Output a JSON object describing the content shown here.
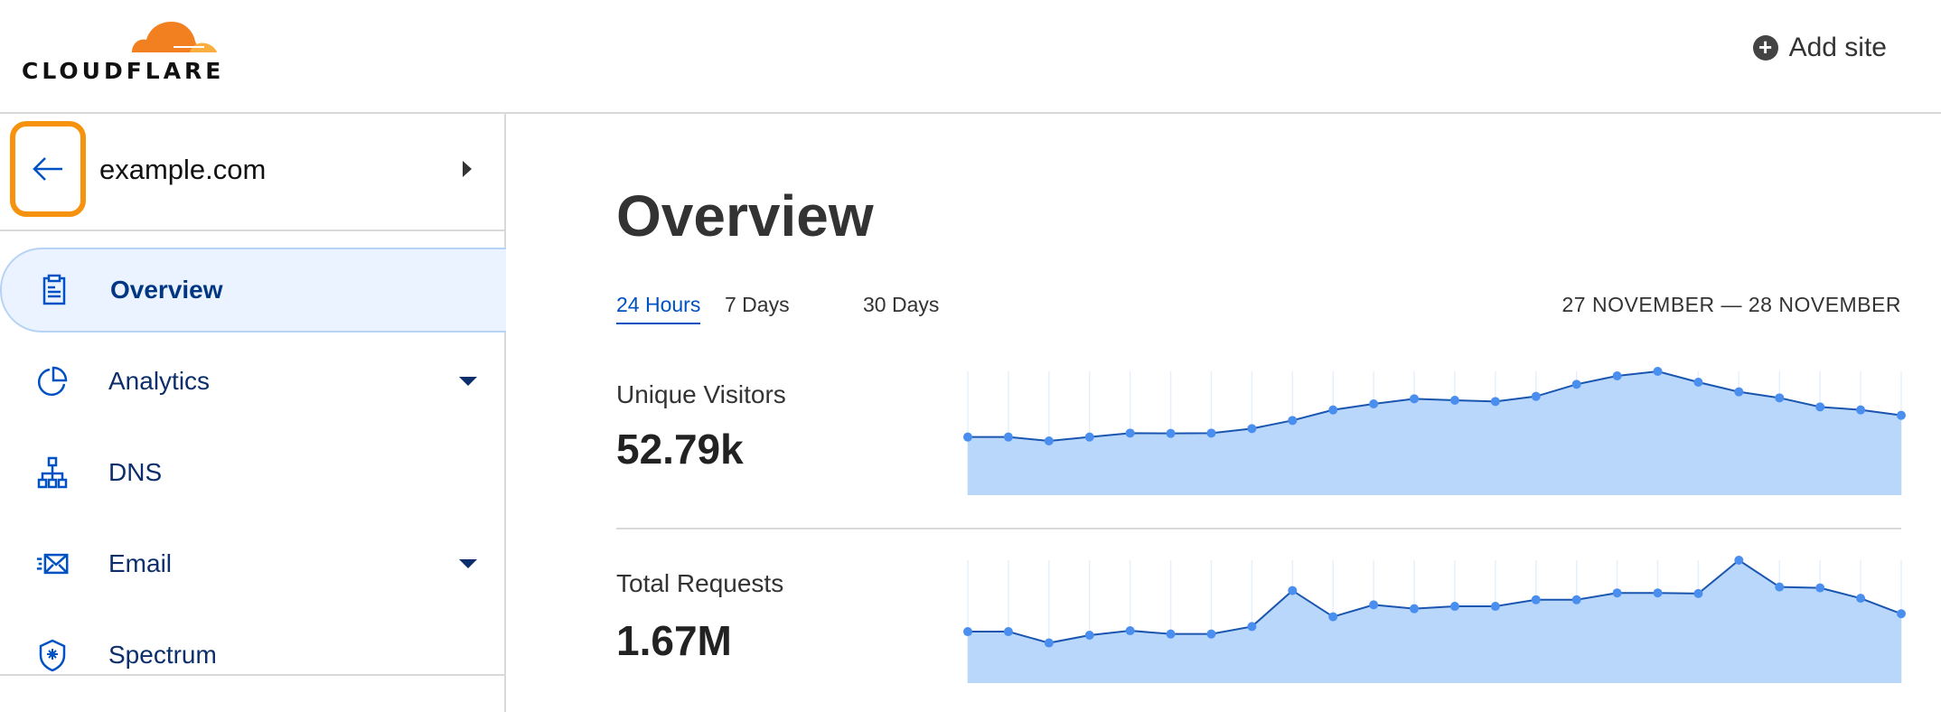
{
  "header": {
    "logo_text": "CLOUDFLARE",
    "add_site_label": "Add site",
    "add_site_icon": "plus-circle-icon"
  },
  "sidebar": {
    "domain": "example.com",
    "back_icon": "arrow-left-icon",
    "items": [
      {
        "label": "Overview",
        "icon": "clipboard-icon",
        "active": true,
        "dropdown": false
      },
      {
        "label": "Analytics",
        "icon": "pie-chart-icon",
        "active": false,
        "dropdown": true
      },
      {
        "label": "DNS",
        "icon": "network-icon",
        "active": false,
        "dropdown": false
      },
      {
        "label": "Email",
        "icon": "email-icon",
        "active": false,
        "dropdown": true
      },
      {
        "label": "Spectrum",
        "icon": "shield-icon",
        "active": false,
        "dropdown": false
      }
    ]
  },
  "main": {
    "title": "Overview",
    "tabs": [
      {
        "label": "24 Hours",
        "active": true
      },
      {
        "label": "7 Days"
      },
      {
        "label": "30 Days"
      }
    ],
    "date_range": "27 NOVEMBER — 28 NOVEMBER",
    "metrics": [
      {
        "label": "Unique Visitors",
        "value": "52.79k"
      },
      {
        "label": "Total Requests",
        "value": "1.67M"
      }
    ]
  },
  "colors": {
    "accent": "#0051c3",
    "highlight": "#f7920f",
    "area_fill": "#b9d6fb",
    "line": "#1a56b0",
    "point": "#4a8ff0"
  },
  "chart_data": [
    {
      "type": "area",
      "values": [
        193,
        193,
        180,
        193,
        206,
        205,
        206,
        221,
        248,
        283,
        303,
        320,
        315,
        311,
        328,
        368,
        396,
        411,
        375,
        343,
        323,
        293,
        283,
        265
      ],
      "ylim": [
        0,
        411
      ],
      "grid": "vertical"
    },
    {
      "type": "area",
      "values": [
        173,
        173,
        135,
        161,
        176,
        165,
        165,
        190,
        311,
        223,
        263,
        250,
        258,
        258,
        280,
        280,
        303,
        303,
        301,
        413,
        323,
        320,
        285,
        233
      ],
      "ylim": [
        0,
        413
      ],
      "grid": "vertical"
    }
  ]
}
